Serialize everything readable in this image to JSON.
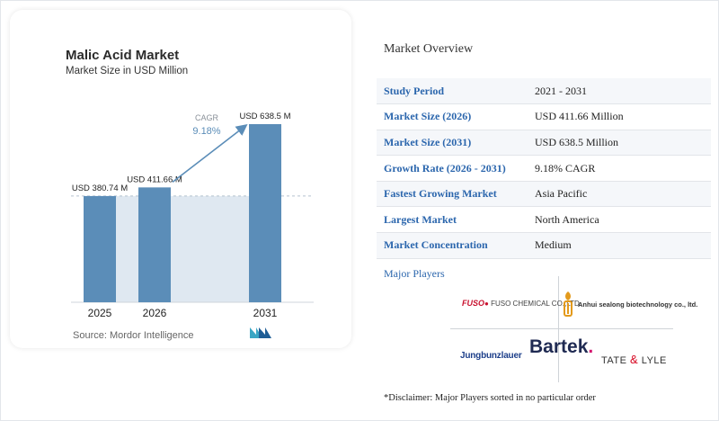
{
  "chart_data": {
    "type": "bar",
    "title": "Malic Acid Market",
    "subtitle": "Market Size in USD Million",
    "categories": [
      "2025",
      "2026",
      "2031"
    ],
    "values": [
      380.74,
      411.66,
      638.5
    ],
    "value_labels": [
      "USD 380.74 M",
      "USD 411.66 M",
      "USD 638.5 M"
    ],
    "cagr_label": "CAGR",
    "cagr_value": "9.18%",
    "grid": false,
    "colors": {
      "bar": "#5b8db8",
      "highlight": "#dfe8f1",
      "arrow": "#5b8db8"
    }
  },
  "source": "Source: Mordor Intelligence",
  "overview": {
    "title": "Market Overview",
    "rows": [
      {
        "key": "Study Period",
        "value": "2021 - 2031"
      },
      {
        "key": "Market Size (2026)",
        "value": "USD 411.66 Million"
      },
      {
        "key": "Market Size (2031)",
        "value": "USD 638.5 Million"
      },
      {
        "key": "Growth Rate (2026 - 2031)",
        "value": "9.18% CAGR"
      },
      {
        "key": "Fastest Growing Market",
        "value": "Asia Pacific"
      },
      {
        "key": "Largest Market",
        "value": "North America"
      },
      {
        "key": "Market Concentration",
        "value": "Medium"
      }
    ]
  },
  "players": {
    "title": "Major Players",
    "fuso_mark": "FUSO",
    "fuso_name": "FUSO CHEMICAL CO.,LTD.",
    "anhui": "Anhui sealong biotechnology co., ltd.",
    "jungbunzlauer": "Jungbunzlauer",
    "bartek": "Bartek",
    "bartek_dot": ".",
    "tate_left": "TATE",
    "tate_amp": "&",
    "tate_right": "LYLE"
  },
  "disclaimer": "*Disclaimer: Major Players sorted in no particular order"
}
